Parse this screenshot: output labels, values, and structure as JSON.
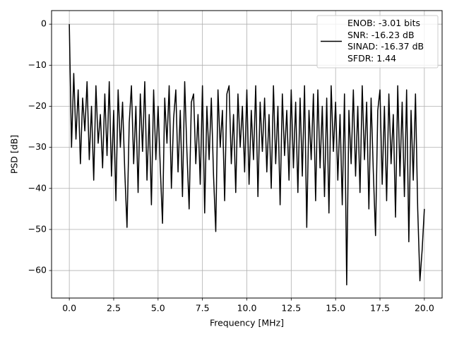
{
  "chart_data": {
    "type": "line",
    "xlabel": "Frequency [MHz]",
    "ylabel": "PSD [dB]",
    "xlim": [
      -1.0,
      21.0
    ],
    "ylim": [
      -66.7,
      3.3
    ],
    "xticks": [
      {
        "value": 0,
        "label": "0.0"
      },
      2.5,
      {
        "value": 5,
        "label": "5.0"
      },
      7.5,
      {
        "value": 10,
        "label": "10.0"
      },
      12.5,
      {
        "value": 15,
        "label": "15.0"
      },
      17.5,
      {
        "value": 20,
        "label": "20.0"
      }
    ],
    "yticks": [
      {
        "value": -60,
        "label": "−60"
      },
      {
        "value": -50,
        "label": "−50"
      },
      {
        "value": -40,
        "label": "−40"
      },
      {
        "value": -30,
        "label": "−30"
      },
      {
        "value": -20,
        "label": "−20"
      },
      {
        "value": -10,
        "label": "−10"
      },
      0
    ],
    "grid": true,
    "legend": "upper right",
    "x": [
      0,
      0.125,
      0.25,
      0.375,
      0.5,
      0.625,
      0.75,
      0.875,
      1,
      1.125,
      1.25,
      1.375,
      1.5,
      1.625,
      1.75,
      1.875,
      2,
      2.125,
      2.25,
      2.375,
      2.5,
      2.625,
      2.75,
      2.875,
      3,
      3.125,
      3.25,
      3.375,
      3.5,
      3.625,
      3.75,
      3.875,
      4,
      4.125,
      4.25,
      4.375,
      4.5,
      4.625,
      4.75,
      4.875,
      5,
      5.125,
      5.25,
      5.375,
      5.5,
      5.625,
      5.75,
      5.875,
      6,
      6.125,
      6.25,
      6.375,
      6.5,
      6.625,
      6.75,
      6.875,
      7,
      7.125,
      7.25,
      7.375,
      7.5,
      7.625,
      7.75,
      7.875,
      8,
      8.125,
      8.25,
      8.375,
      8.5,
      8.625,
      8.75,
      8.875,
      9,
      9.125,
      9.25,
      9.375,
      9.5,
      9.625,
      9.75,
      9.875,
      10,
      10.125,
      10.25,
      10.375,
      10.5,
      10.625,
      10.75,
      10.875,
      11,
      11.125,
      11.25,
      11.375,
      11.5,
      11.625,
      11.75,
      11.875,
      12,
      12.125,
      12.25,
      12.375,
      12.5,
      12.625,
      12.75,
      12.875,
      13,
      13.125,
      13.25,
      13.375,
      13.5,
      13.625,
      13.75,
      13.875,
      14,
      14.125,
      14.25,
      14.375,
      14.5,
      14.625,
      14.75,
      14.875,
      15,
      15.125,
      15.25,
      15.375,
      15.5,
      15.625,
      15.75,
      15.875,
      16,
      16.125,
      16.25,
      16.375,
      16.5,
      16.625,
      16.75,
      16.875,
      17,
      17.125,
      17.25,
      17.375,
      17.5,
      17.625,
      17.75,
      17.875,
      18,
      18.125,
      18.25,
      18.375,
      18.5,
      18.625,
      18.75,
      18.875,
      19,
      19.125,
      19.25,
      19.375,
      19.5,
      19.625,
      19.75,
      19.875,
      20
    ],
    "series": [
      {
        "name": "ENOB: -3.01 bits\nSNR: -16.23 dB\nSINAD: -16.37 dB\nSFDR: 1.44",
        "color": "#000000",
        "values": [
          0,
          -30,
          -12,
          -28,
          -16,
          -34,
          -18,
          -26,
          -14,
          -33,
          -20,
          -38,
          -15,
          -29,
          -22,
          -35,
          -17,
          -32,
          -14,
          -37,
          -21,
          -43,
          -16,
          -30,
          -19,
          -36,
          -49.5,
          -24,
          -15,
          -34,
          -20,
          -41,
          -17,
          -31,
          -14,
          -38,
          -22,
          -44,
          -16,
          -33,
          -20,
          -35,
          -48.5,
          -18,
          -29,
          -15,
          -40,
          -23,
          -16,
          -36,
          -21,
          -42,
          -14,
          -31,
          -45,
          -19,
          -17,
          -34,
          -22,
          -39,
          -15,
          -46,
          -20,
          -33,
          -18,
          -37,
          -50.5,
          -16,
          -30,
          -21,
          -43,
          -17,
          -15,
          -34,
          -22,
          -41,
          -17,
          -30,
          -20,
          -36,
          -16,
          -39,
          -21,
          -33,
          -15,
          -42,
          -19,
          -31,
          -18,
          -36,
          -22,
          -40,
          -15,
          -34,
          -20,
          -44,
          -17,
          -32,
          -21,
          -38,
          -16,
          -35,
          -19,
          -41,
          -18,
          -37,
          -15,
          -49.5,
          -21,
          -33,
          -17,
          -43,
          -16,
          -35,
          -20,
          -42,
          -18,
          -46,
          -15,
          -31,
          -19,
          -38,
          -22,
          -44,
          -17,
          -63.5,
          -21,
          -34,
          -16,
          -37,
          -20,
          -41,
          -15,
          -33,
          -19,
          -45,
          -18,
          -36,
          -51.5,
          -21,
          -16,
          -39,
          -20,
          -43,
          -17,
          -34,
          -22,
          -47,
          -15,
          -37,
          -19,
          -42,
          -16,
          -53,
          -21,
          -38,
          -17,
          -45,
          -62.5,
          -55,
          -45
        ]
      }
    ]
  }
}
